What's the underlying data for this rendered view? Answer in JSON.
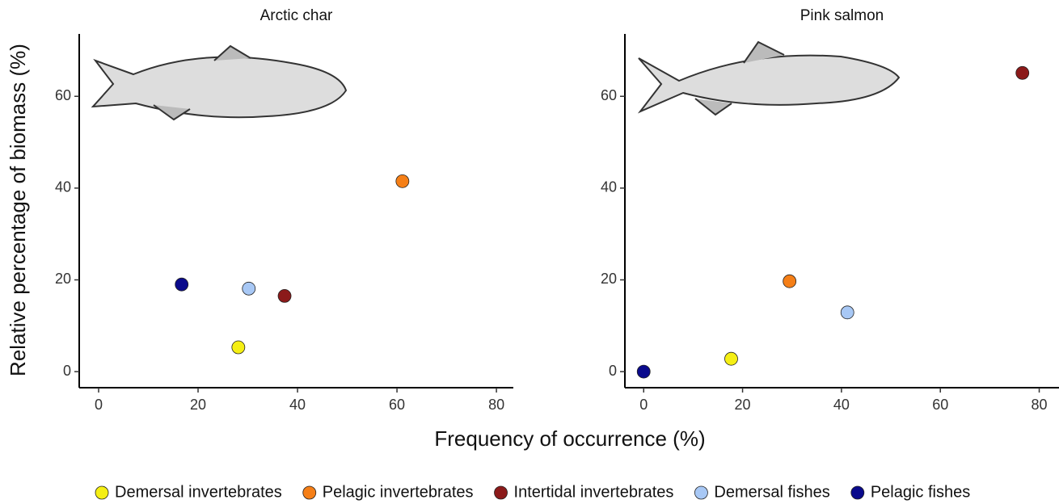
{
  "xlabel": "Frequency of occurrence (%)",
  "ylabel": "Relative percentage of biomass (%)",
  "chart_data": [
    {
      "type": "scatter",
      "title": "Arctic char",
      "xlim": [
        -3.9,
        83.4
      ],
      "ylim": [
        -3.5,
        73.6
      ],
      "xticks": [
        0,
        20,
        40,
        60,
        80
      ],
      "yticks": [
        0,
        20,
        40,
        60
      ],
      "series": [
        {
          "name": "Demersal invertebrates",
          "color": "#f5ef14",
          "x": [
            28.1
          ],
          "values": [
            5.3
          ]
        },
        {
          "name": "Pelagic invertebrates",
          "color": "#f57f17",
          "x": [
            61.1
          ],
          "values": [
            41.5
          ]
        },
        {
          "name": "Intertidal invertebrates",
          "color": "#8b1a1a",
          "x": [
            37.4
          ],
          "values": [
            16.5
          ]
        },
        {
          "name": "Demersal fishes",
          "color": "#a8c8f5",
          "x": [
            30.2
          ],
          "values": [
            18.1
          ]
        },
        {
          "name": "Pelagic fishes",
          "color": "#0a0a8c",
          "x": [
            16.7
          ],
          "values": [
            19.0
          ]
        }
      ]
    },
    {
      "type": "scatter",
      "title": "Pink salmon",
      "xlim": [
        -3.8,
        84.0
      ],
      "ylim": [
        -3.5,
        73.6
      ],
      "xticks": [
        0,
        20,
        40,
        60,
        80
      ],
      "yticks": [
        0,
        20,
        40,
        60
      ],
      "series": [
        {
          "name": "Demersal invertebrates",
          "color": "#f5ef14",
          "x": [
            17.7
          ],
          "values": [
            2.8
          ]
        },
        {
          "name": "Pelagic invertebrates",
          "color": "#f57f17",
          "x": [
            29.5
          ],
          "values": [
            19.7
          ]
        },
        {
          "name": "Intertidal invertebrates",
          "color": "#8b1a1a",
          "x": [
            76.6
          ],
          "values": [
            65.1
          ]
        },
        {
          "name": "Demersal fishes",
          "color": "#a8c8f5",
          "x": [
            41.2
          ],
          "values": [
            12.9
          ]
        },
        {
          "name": "Pelagic fishes",
          "color": "#0a0a8c",
          "x": [
            0
          ],
          "values": [
            0
          ]
        }
      ]
    }
  ]
}
